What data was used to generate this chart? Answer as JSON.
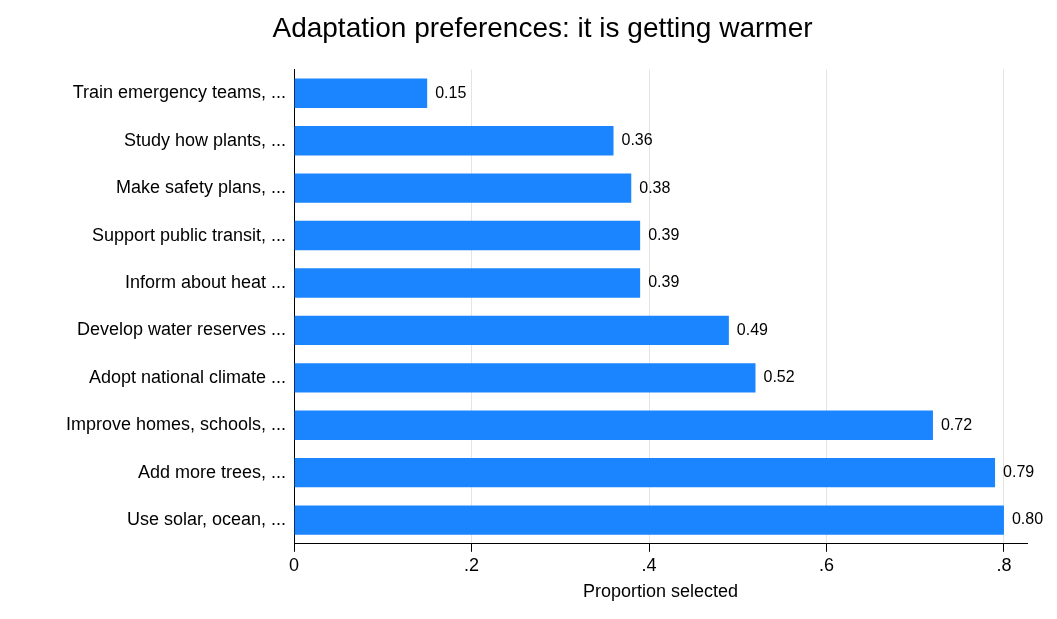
{
  "chart_data": {
    "type": "bar",
    "orientation": "horizontal",
    "title": "Adaptation preferences: it is getting warmer",
    "xlabel": "Proportion selected",
    "categories": [
      "Train emergency teams, ...",
      "Study how plants, ...",
      "Make safety plans, ...",
      "Support public transit, ...",
      "Inform about heat ...",
      "Develop water reserves ...",
      "Adopt national climate ...",
      "Improve homes, schools, ...",
      "Add more trees, ...",
      "Use solar, ocean, ..."
    ],
    "values": [
      0.15,
      0.36,
      0.38,
      0.39,
      0.39,
      0.49,
      0.52,
      0.72,
      0.79,
      0.8
    ],
    "value_labels": [
      "0.15",
      "0.36",
      "0.38",
      "0.39",
      "0.39",
      "0.49",
      "0.52",
      "0.72",
      "0.79",
      "0.80"
    ],
    "color": "#1a85ff",
    "xlim": [
      0,
      0.826
    ],
    "xticks": [
      0,
      {
        "value": 0.2,
        "label": ".2"
      },
      {
        "value": 0.4,
        "label": ".4"
      },
      {
        "value": 0.6,
        "label": ".6"
      },
      {
        "value": 0.8,
        "label": ".8"
      }
    ],
    "grid": "x",
    "legend": false
  }
}
